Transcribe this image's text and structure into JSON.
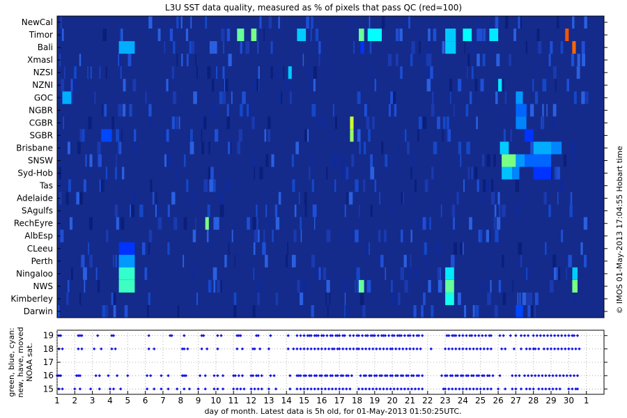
{
  "chart_data": [
    {
      "type": "heatmap",
      "title": "L3U SST data quality, measured as % of pixels that pass QC (red=100)",
      "regions": [
        "NewCal",
        "Timor",
        "Bali",
        "Xmasl",
        "NZSI",
        "NZNI",
        "GOC",
        "NGBR",
        "CGBR",
        "SGBR",
        "Brisbane",
        "SNSW",
        "Syd-Hob",
        "Tas",
        "Adelaide",
        "SAgulfs",
        "RechEyre",
        "AlbEsp",
        "CLeeu",
        "Perth",
        "Ningaloo",
        "NWS",
        "Kimberley",
        "Darwin"
      ],
      "x_range": [
        1,
        32
      ],
      "colorscale": {
        "min": 0,
        "max": 100,
        "stops": [
          "#00008f",
          "#0000ff",
          "#00ffff",
          "#ffff00",
          "#ff0000"
        ],
        "baseline_color": "#142b8c"
      },
      "right_label": "© IMOS 01-May-2013 17:04:55 Hobart time",
      "cells": [
        {
          "region": "Timor",
          "x0": 11.2,
          "x1": 11.6,
          "value": 60
        },
        {
          "region": "Timor",
          "x0": 12.0,
          "x1": 12.3,
          "value": 62
        },
        {
          "region": "Timor",
          "x0": 14.6,
          "x1": 15.1,
          "value": 45
        },
        {
          "region": "Timor",
          "x0": 18.1,
          "x1": 18.4,
          "value": 60
        },
        {
          "region": "Timor",
          "x0": 18.6,
          "x1": 19.4,
          "value": 50
        },
        {
          "region": "Timor",
          "x0": 23.0,
          "x1": 23.6,
          "value": 45
        },
        {
          "region": "Timor",
          "x0": 24.0,
          "x1": 24.5,
          "value": 50
        },
        {
          "region": "Timor",
          "x0": 25.5,
          "x1": 26.0,
          "value": 48
        },
        {
          "region": "Timor",
          "x0": 29.8,
          "x1": 30.0,
          "value": 92
        },
        {
          "region": "Bali",
          "x0": 4.5,
          "x1": 5.4,
          "value": 42
        },
        {
          "region": "Bali",
          "x0": 18.2,
          "x1": 18.4,
          "value": 30
        },
        {
          "region": "Bali",
          "x0": 23.0,
          "x1": 23.6,
          "value": 45
        },
        {
          "region": "Bali",
          "x0": 30.2,
          "x1": 30.4,
          "value": 90
        },
        {
          "region": "NZSI",
          "x0": 14.1,
          "x1": 14.3,
          "value": 45
        },
        {
          "region": "NZNI",
          "x0": 26.0,
          "x1": 26.2,
          "value": 48
        },
        {
          "region": "GOC",
          "x0": 1.3,
          "x1": 1.8,
          "value": 42
        },
        {
          "region": "GOC",
          "x0": 27.0,
          "x1": 27.4,
          "value": 40
        },
        {
          "region": "NGBR",
          "x0": 27.0,
          "x1": 27.6,
          "value": 35
        },
        {
          "region": "CGBR",
          "x0": 17.6,
          "x1": 17.8,
          "value": 70
        },
        {
          "region": "CGBR",
          "x0": 27.0,
          "x1": 27.6,
          "value": 38
        },
        {
          "region": "SGBR",
          "x0": 3.5,
          "x1": 4.1,
          "value": 32
        },
        {
          "region": "SGBR",
          "x0": 17.6,
          "x1": 17.8,
          "value": 65
        },
        {
          "region": "SGBR",
          "x0": 27.5,
          "x1": 28.0,
          "value": 30
        },
        {
          "region": "Brisbane",
          "x0": 26.1,
          "x1": 26.6,
          "value": 45
        },
        {
          "region": "Brisbane",
          "x0": 28.0,
          "x1": 29.0,
          "value": 42
        },
        {
          "region": "Brisbane",
          "x0": 29.0,
          "x1": 29.6,
          "value": 38
        },
        {
          "region": "SNSW",
          "x0": 26.2,
          "x1": 27.0,
          "value": 62
        },
        {
          "region": "SNSW",
          "x0": 27.0,
          "x1": 27.5,
          "value": 40
        },
        {
          "region": "SNSW",
          "x0": 27.5,
          "x1": 29.0,
          "value": 35
        },
        {
          "region": "Syd-Hob",
          "x0": 26.2,
          "x1": 26.8,
          "value": 44
        },
        {
          "region": "Syd-Hob",
          "x0": 26.8,
          "x1": 27.2,
          "value": 38
        },
        {
          "region": "Syd-Hob",
          "x0": 28.0,
          "x1": 29.0,
          "value": 30
        },
        {
          "region": "RechEyre",
          "x0": 9.4,
          "x1": 9.6,
          "value": 62
        },
        {
          "region": "CLeeu",
          "x0": 4.5,
          "x1": 5.4,
          "value": 30
        },
        {
          "region": "Perth",
          "x0": 4.5,
          "x1": 5.4,
          "value": 40
        },
        {
          "region": "Ningaloo",
          "x0": 4.5,
          "x1": 5.4,
          "value": 55
        },
        {
          "region": "Ningaloo",
          "x0": 23.0,
          "x1": 23.5,
          "value": 48
        },
        {
          "region": "Ningaloo",
          "x0": 30.2,
          "x1": 30.5,
          "value": 45
        },
        {
          "region": "NWS",
          "x0": 4.5,
          "x1": 5.4,
          "value": 56
        },
        {
          "region": "NWS",
          "x0": 18.1,
          "x1": 18.4,
          "value": 60
        },
        {
          "region": "NWS",
          "x0": 23.0,
          "x1": 23.5,
          "value": 60
        },
        {
          "region": "NWS",
          "x0": 30.2,
          "x1": 30.5,
          "value": 62
        },
        {
          "region": "Kimberley",
          "x0": 23.0,
          "x1": 23.5,
          "value": 52
        },
        {
          "region": "Darwin",
          "x0": 27.0,
          "x1": 27.4,
          "value": 32
        }
      ]
    },
    {
      "type": "scatter",
      "ylabel": "green, blue, cyan: new, have, moved NOAA sat.",
      "xlabel": "day of month. Latest data is 5h old, for 01-May-2013 01:50:25UTC.",
      "x_range": [
        1,
        32
      ],
      "x_ticks": [
        "1",
        "2",
        "3",
        "4",
        "5",
        "6",
        "7",
        "8",
        "9",
        "10",
        "11",
        "12",
        "13",
        "14",
        "15",
        "16",
        "17",
        "18",
        "19",
        "20",
        "21",
        "22",
        "23",
        "24",
        "25",
        "26",
        "27",
        "28",
        "29",
        "30",
        "1"
      ],
      "y_ticks": [
        "15",
        "16",
        "17",
        "18",
        "19"
      ],
      "y_range": [
        14.6,
        19.4
      ],
      "marker_color": "#1414e6",
      "series": [
        {
          "name": "NOAA 19",
          "y": 19,
          "x": [
            1.1,
            1.2,
            2.2,
            2.3,
            2.4,
            3.3,
            4.1,
            4.2,
            6.2,
            7.4,
            7.5,
            8.2,
            9.2,
            9.3,
            10.1,
            10.3,
            11.2,
            11.3,
            11.4,
            12.3,
            12.4,
            13.1,
            14.1,
            14.6,
            14.8,
            15.0,
            15.2,
            15.3,
            15.4,
            15.6,
            15.7,
            15.8,
            16.0,
            16.1,
            16.3,
            16.5,
            16.6,
            16.8,
            16.9,
            17.0,
            17.2,
            17.3,
            17.6,
            17.8,
            18.0,
            18.1,
            18.3,
            18.5,
            18.6,
            18.8,
            18.9,
            19.0,
            19.2,
            19.4,
            19.5,
            19.6,
            19.8,
            20.0,
            20.1,
            20.3,
            20.4,
            20.5,
            20.7,
            20.9,
            21.0,
            21.2,
            21.4,
            21.5,
            21.7,
            23.1,
            23.2,
            23.4,
            23.5,
            23.6,
            23.8,
            24.0,
            24.2,
            24.4,
            24.5,
            24.7,
            24.9,
            25.1,
            25.3,
            25.5,
            25.6,
            26.1,
            26.3,
            26.7,
            27.0,
            27.3,
            27.5,
            27.7,
            28.0,
            28.2,
            28.4,
            28.6,
            28.8,
            29.0,
            29.2,
            29.4,
            29.6,
            29.8,
            30.0,
            30.2,
            30.3,
            30.5
          ]
        },
        {
          "name": "NOAA 18",
          "y": 18,
          "x": [
            1.1,
            1.3,
            2.2,
            2.4,
            3.1,
            3.5,
            4.1,
            4.3,
            6.2,
            6.5,
            8.1,
            8.2,
            8.4,
            9.2,
            9.5,
            10.1,
            11.2,
            11.5,
            12.1,
            12.2,
            12.5,
            13.0,
            14.1,
            14.4,
            14.6,
            14.8,
            15.0,
            15.2,
            15.4,
            15.6,
            15.8,
            16.0,
            16.2,
            16.4,
            16.6,
            16.7,
            16.9,
            17.0,
            17.2,
            17.4,
            17.6,
            17.8,
            18.0,
            18.1,
            18.3,
            18.5,
            18.7,
            18.9,
            19.1,
            19.3,
            19.5,
            19.7,
            19.9,
            20.0,
            20.2,
            20.4,
            20.6,
            20.8,
            21.0,
            21.2,
            21.4,
            21.6,
            22.2,
            23.0,
            23.2,
            23.4,
            23.6,
            23.8,
            24.0,
            24.2,
            24.4,
            24.6,
            24.8,
            25.0,
            25.2,
            25.4,
            25.6,
            26.2,
            26.4,
            26.9,
            27.3,
            27.6,
            27.8,
            28.0,
            28.1,
            28.3,
            28.6,
            28.8,
            29.0,
            29.2,
            29.4,
            29.6,
            29.8,
            30.0,
            30.2,
            30.4,
            30.6
          ]
        },
        {
          "name": "NOAA 16",
          "y": 16,
          "x": [
            1.0,
            1.1,
            1.2,
            2.1,
            2.2,
            2.3,
            3.2,
            3.4,
            3.9,
            4.4,
            5.0,
            6.1,
            6.3,
            6.9,
            7.3,
            8.1,
            8.2,
            8.3,
            9.1,
            9.4,
            9.9,
            10.1,
            10.4,
            11.0,
            11.1,
            11.3,
            11.5,
            12.0,
            12.1,
            12.3,
            12.4,
            12.6,
            13.1,
            13.3,
            14.2,
            14.6,
            14.7,
            14.8,
            15.0,
            15.1,
            15.3,
            15.4,
            15.6,
            15.7,
            15.9,
            16.0,
            16.2,
            16.3,
            16.5,
            16.6,
            16.8,
            16.9,
            17.1,
            17.2,
            17.4,
            17.5,
            17.7,
            18.2,
            18.4,
            18.5,
            18.7,
            18.8,
            19.0,
            19.1,
            19.3,
            19.4,
            19.6,
            19.7,
            19.9,
            20.0,
            20.2,
            20.3,
            20.5,
            20.6,
            20.8,
            20.9,
            21.1,
            21.2,
            21.4,
            21.5,
            21.7,
            22.8,
            23.0,
            23.1,
            23.3,
            23.4,
            23.6,
            23.7,
            23.9,
            24.0,
            24.2,
            24.3,
            24.5,
            24.6,
            24.8,
            24.9,
            25.1,
            25.2,
            25.4,
            25.5,
            25.7,
            26.1,
            26.8,
            27.0,
            27.2,
            27.5,
            27.7,
            27.9,
            28.1,
            28.3,
            28.5,
            28.7,
            28.9,
            29.1,
            29.3,
            29.5,
            29.7,
            29.9,
            30.1,
            30.3,
            30.5
          ]
        },
        {
          "name": "NOAA 15",
          "y": 15,
          "x": [
            1.1,
            1.3,
            2.0,
            2.3,
            2.9,
            3.4,
            4.0,
            4.2,
            4.6,
            6.1,
            6.5,
            6.9,
            7.3,
            7.8,
            8.2,
            8.5,
            9.0,
            9.4,
            9.9,
            10.1,
            10.4,
            11.0,
            11.2,
            11.4,
            11.6,
            12.0,
            12.2,
            12.4,
            12.6,
            13.0,
            13.4,
            14.2,
            14.6,
            14.8,
            15.0,
            15.2,
            15.4,
            15.6,
            15.8,
            16.0,
            16.2,
            16.4,
            16.6,
            16.8,
            17.0,
            17.2,
            17.4,
            17.6,
            18.1,
            18.3,
            18.5,
            18.7,
            18.9,
            19.1,
            19.3,
            19.5,
            19.7,
            19.9,
            20.1,
            20.3,
            20.5,
            20.7,
            20.9,
            21.1,
            21.3,
            21.5,
            21.7,
            22.9,
            23.0,
            23.2,
            23.4,
            23.6,
            23.8,
            24.0,
            24.2,
            24.4,
            24.6,
            24.8,
            25.0,
            25.2,
            25.4,
            25.6,
            26.0,
            26.4,
            26.8,
            27.0,
            27.3,
            27.6,
            27.8,
            28.0,
            28.3,
            28.5,
            28.7,
            28.9,
            29.1,
            29.3,
            29.5,
            30.0,
            30.2,
            30.4,
            30.5
          ]
        }
      ]
    }
  ]
}
